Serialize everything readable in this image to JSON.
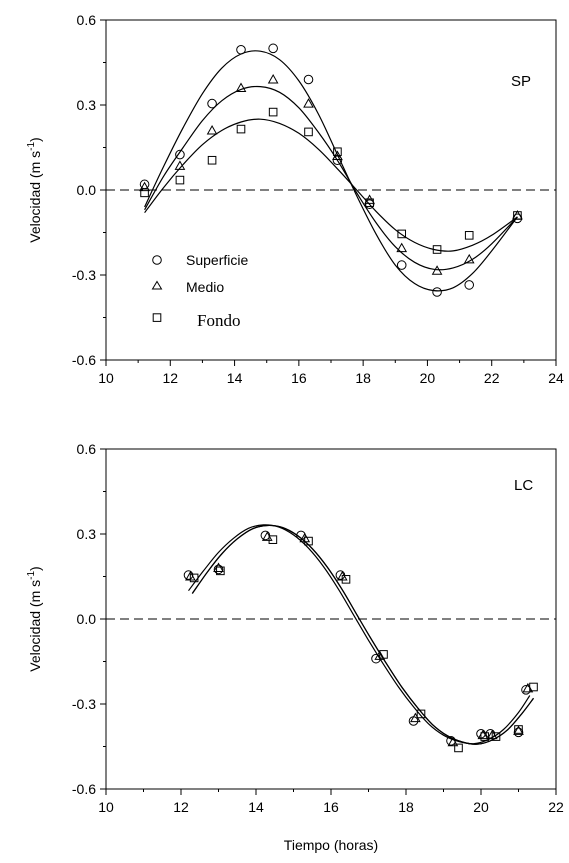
{
  "chart_data": [
    {
      "type": "scatter",
      "panel_label": "SP",
      "xlim": [
        10,
        24
      ],
      "ylim": [
        -0.6,
        0.6
      ],
      "x_ticks": [
        "10",
        "12",
        "14",
        "16",
        "18",
        "20",
        "22",
        "24"
      ],
      "y_ticks": [
        "0.6",
        "0.3",
        "0.0",
        "-0.3",
        "-0.6"
      ],
      "ylabel": "Velocidad (m s",
      "ylabel_sup": "-1",
      "ylabel_end": ")",
      "zero_line": "dashed",
      "legend": {
        "placement": "bottom-left",
        "entries": [
          {
            "label": "Superficie",
            "marker": "circle"
          },
          {
            "label": "Medio",
            "marker": "triangle"
          },
          {
            "label": "Fondo",
            "marker": "square"
          }
        ]
      },
      "series": [
        {
          "name": "Superficie",
          "marker": "circle",
          "x": [
            11.2,
            12.3,
            13.3,
            14.2,
            15.2,
            16.3,
            17.2,
            18.2,
            19.2,
            20.3,
            21.3,
            22.8
          ],
          "y": [
            0.02,
            0.125,
            0.305,
            0.495,
            0.5,
            0.39,
            0.105,
            -0.05,
            -0.265,
            -0.36,
            -0.335,
            -0.1
          ],
          "fit_x": [
            11.2,
            11.8,
            12.4,
            13.0,
            13.6,
            14.2,
            14.8,
            15.4,
            16.0,
            16.6,
            17.2,
            17.8,
            18.4,
            19.0,
            19.6,
            20.2,
            20.8,
            21.4,
            22.0,
            22.8
          ],
          "fit_y": [
            -0.06,
            0.085,
            0.22,
            0.34,
            0.43,
            0.48,
            0.49,
            0.46,
            0.385,
            0.27,
            0.125,
            -0.02,
            -0.155,
            -0.265,
            -0.33,
            -0.355,
            -0.345,
            -0.295,
            -0.215,
            -0.095
          ]
        },
        {
          "name": "Medio",
          "marker": "triangle",
          "x": [
            11.2,
            12.3,
            13.3,
            14.2,
            15.2,
            16.3,
            17.2,
            18.2,
            19.2,
            20.3,
            21.3,
            22.8
          ],
          "y": [
            0.01,
            0.085,
            0.21,
            0.36,
            0.39,
            0.305,
            0.12,
            -0.035,
            -0.205,
            -0.285,
            -0.245,
            -0.09
          ],
          "fit_x": [
            11.2,
            11.8,
            12.4,
            13.0,
            13.6,
            14.2,
            14.8,
            15.4,
            16.0,
            16.6,
            17.2,
            17.8,
            18.4,
            19.0,
            19.6,
            20.2,
            20.8,
            21.4,
            22.0,
            22.8
          ],
          "fit_y": [
            -0.07,
            0.05,
            0.15,
            0.245,
            0.315,
            0.355,
            0.365,
            0.345,
            0.29,
            0.205,
            0.105,
            -0.01,
            -0.115,
            -0.2,
            -0.255,
            -0.28,
            -0.275,
            -0.245,
            -0.19,
            -0.095
          ]
        },
        {
          "name": "Fondo",
          "marker": "square",
          "x": [
            11.2,
            12.3,
            13.3,
            14.2,
            15.2,
            16.3,
            17.2,
            18.2,
            19.2,
            20.3,
            21.3,
            22.8
          ],
          "y": [
            -0.01,
            0.035,
            0.105,
            0.215,
            0.275,
            0.205,
            0.135,
            -0.045,
            -0.155,
            -0.21,
            -0.16,
            -0.09
          ],
          "fit_x": [
            11.2,
            11.8,
            12.4,
            13.0,
            13.6,
            14.2,
            14.8,
            15.4,
            16.0,
            16.6,
            17.2,
            17.8,
            18.4,
            19.0,
            19.6,
            20.2,
            20.8,
            21.4,
            22.0,
            22.8
          ],
          "fit_y": [
            -0.08,
            0.01,
            0.09,
            0.16,
            0.21,
            0.24,
            0.25,
            0.235,
            0.2,
            0.145,
            0.075,
            0.0,
            -0.075,
            -0.14,
            -0.185,
            -0.21,
            -0.215,
            -0.195,
            -0.16,
            -0.095
          ]
        }
      ]
    },
    {
      "type": "scatter",
      "panel_label": "LC",
      "xlim": [
        10,
        22
      ],
      "ylim": [
        -0.6,
        0.6
      ],
      "x_ticks": [
        "10",
        "12",
        "14",
        "16",
        "18",
        "20",
        "22"
      ],
      "y_ticks": [
        "0.6",
        "0.3",
        "0.0",
        "-0.3",
        "-0.6"
      ],
      "xlabel": "Tiempo (horas)",
      "ylabel": "Velocidad (m s",
      "ylabel_sup": "-1",
      "ylabel_end": ")",
      "zero_line": "dashed",
      "series": [
        {
          "name": "Superficie",
          "marker": "circle",
          "x": [
            12.2,
            13.0,
            14.25,
            15.2,
            16.25,
            17.2,
            18.2,
            19.2,
            20.0,
            20.25,
            21.0,
            21.2
          ],
          "y": [
            0.155,
            0.175,
            0.295,
            0.295,
            0.155,
            -0.14,
            -0.36,
            -0.43,
            -0.405,
            -0.405,
            -0.4,
            -0.25
          ],
          "fit_x": [
            12.2,
            12.6,
            13.0,
            13.4,
            13.8,
            14.2,
            14.6,
            15.0,
            15.4,
            15.8,
            16.2,
            16.6,
            17.0,
            17.4,
            17.8,
            18.2,
            18.6,
            19.0,
            19.4,
            19.8,
            20.2,
            20.6,
            21.0,
            21.3
          ],
          "fit_y": [
            0.1,
            0.17,
            0.235,
            0.285,
            0.32,
            0.332,
            0.325,
            0.297,
            0.25,
            0.185,
            0.105,
            0.015,
            -0.075,
            -0.16,
            -0.24,
            -0.31,
            -0.37,
            -0.41,
            -0.432,
            -0.44,
            -0.425,
            -0.39,
            -0.33,
            -0.27
          ]
        },
        {
          "name": "Medio",
          "marker": "triangle",
          "x": [
            12.25,
            13.0,
            14.3,
            15.3,
            16.3,
            17.3,
            18.25,
            19.25,
            20.05,
            20.3,
            21.0,
            21.25
          ],
          "y": [
            0.15,
            0.18,
            0.29,
            0.285,
            0.15,
            -0.13,
            -0.35,
            -0.435,
            -0.41,
            -0.41,
            -0.395,
            -0.245
          ],
          "fit_x": [
            12.3,
            12.7,
            13.1,
            13.5,
            13.9,
            14.3,
            14.7,
            15.1,
            15.5,
            15.9,
            16.3,
            16.7,
            17.1,
            17.5,
            17.9,
            18.3,
            18.7,
            19.1,
            19.5,
            19.9,
            20.3,
            20.7,
            21.1,
            21.4
          ],
          "fit_y": [
            0.09,
            0.165,
            0.232,
            0.283,
            0.318,
            0.33,
            0.323,
            0.295,
            0.248,
            0.183,
            0.103,
            0.013,
            -0.077,
            -0.162,
            -0.242,
            -0.312,
            -0.372,
            -0.412,
            -0.434,
            -0.442,
            -0.427,
            -0.392,
            -0.332,
            -0.28
          ]
        },
        {
          "name": "Fondo",
          "marker": "square",
          "x": [
            12.35,
            13.05,
            14.45,
            15.4,
            16.4,
            17.4,
            18.4,
            19.4,
            20.1,
            20.4,
            21.0,
            21.4
          ],
          "y": [
            0.145,
            0.17,
            0.28,
            0.275,
            0.14,
            -0.125,
            -0.335,
            -0.455,
            -0.415,
            -0.415,
            -0.39,
            -0.24
          ],
          "fit_x": [
            12.3,
            12.7,
            13.1,
            13.5,
            13.9,
            14.3,
            14.7,
            15.1,
            15.5,
            15.9,
            16.3,
            16.7,
            17.1,
            17.5,
            17.9,
            18.3,
            18.7,
            19.1,
            19.5,
            19.9,
            20.3,
            20.7,
            21.1,
            21.4
          ],
          "fit_y": [
            0.09,
            0.165,
            0.232,
            0.283,
            0.318,
            0.33,
            0.323,
            0.295,
            0.248,
            0.183,
            0.103,
            0.013,
            -0.077,
            -0.162,
            -0.242,
            -0.312,
            -0.372,
            -0.412,
            -0.434,
            -0.442,
            -0.427,
            -0.392,
            -0.332,
            -0.28
          ]
        }
      ]
    }
  ]
}
